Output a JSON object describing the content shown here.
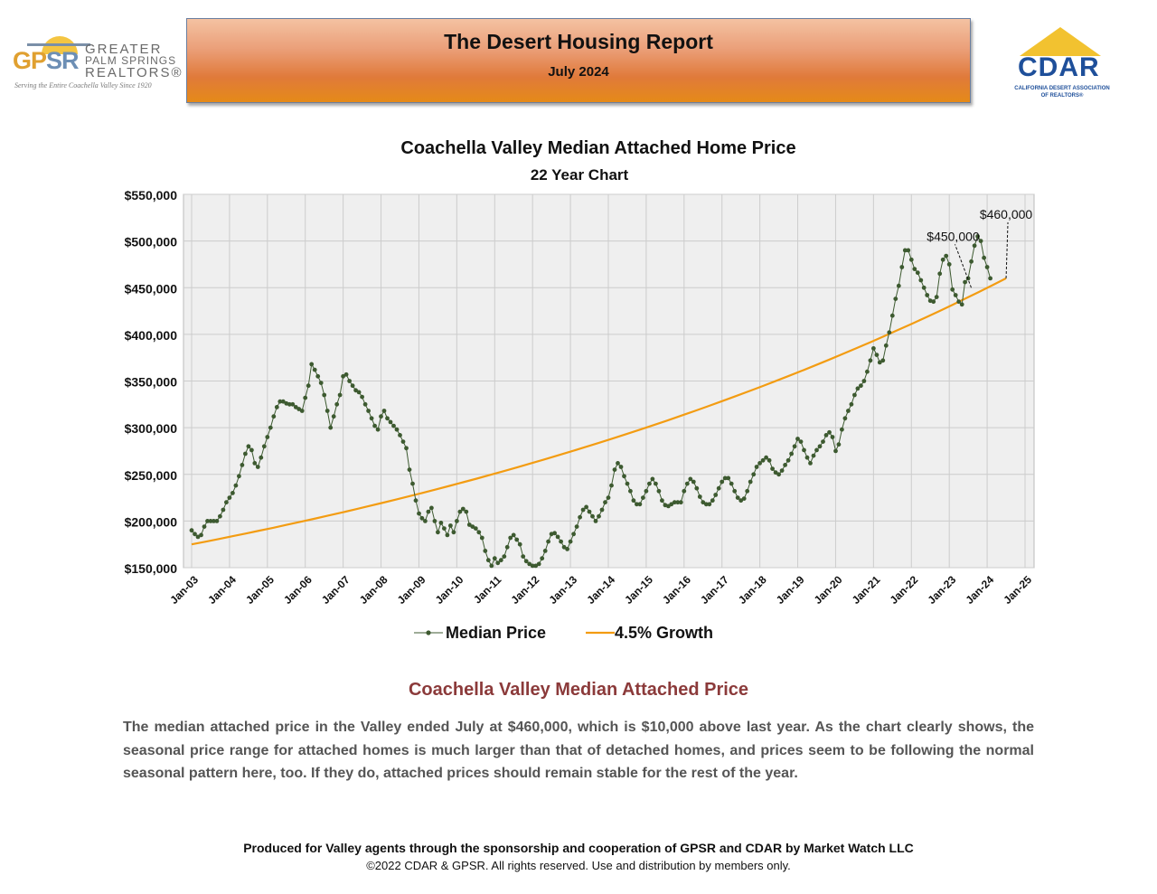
{
  "header": {
    "title": "The Desert Housing Report",
    "subtitle": "July 2024"
  },
  "logos": {
    "left": {
      "acronym_a": "GP",
      "acronym_b": "SR",
      "line1": "GREATER",
      "line2": "PALM SPRINGS",
      "line3": "REALTORS®",
      "tagline": "Serving the Entire Coachella Valley Since 1920"
    },
    "right": {
      "name": "CDAR",
      "subline1": "CALIFORNIA DESERT ASSOCIATION",
      "subline2": "OF REALTORS®"
    }
  },
  "chart_data": {
    "type": "line",
    "title": "Coachella Valley Median Attached Home Price",
    "subtitle": "22 Year Chart",
    "ylim": [
      150000,
      550000
    ],
    "yticks": [
      150000,
      200000,
      250000,
      300000,
      350000,
      400000,
      450000,
      500000,
      550000
    ],
    "ytick_labels": [
      "$150,000",
      "$200,000",
      "$250,000",
      "$300,000",
      "$350,000",
      "$400,000",
      "$450,000",
      "$500,000",
      "$550,000"
    ],
    "xlim": [
      2003.0,
      2025.0
    ],
    "xticks": [
      2003,
      2004,
      2005,
      2006,
      2007,
      2008,
      2009,
      2010,
      2011,
      2012,
      2013,
      2014,
      2015,
      2016,
      2017,
      2018,
      2019,
      2020,
      2021,
      2022,
      2023,
      2024,
      2025
    ],
    "xtick_labels": [
      "Jan-03",
      "Jan-04",
      "Jan-05",
      "Jan-06",
      "Jan-07",
      "Jan-08",
      "Jan-09",
      "Jan-10",
      "Jan-11",
      "Jan-12",
      "Jan-13",
      "Jan-14",
      "Jan-15",
      "Jan-16",
      "Jan-17",
      "Jan-18",
      "Jan-19",
      "Jan-20",
      "Jan-21",
      "Jan-22",
      "Jan-23",
      "Jan-24",
      "Jan-25"
    ],
    "grid": true,
    "legend_position": "bottom",
    "colors": {
      "median": "#3d5a30",
      "growth": "#f39c12",
      "plot_bg": "#efefef",
      "grid": "#cccccc"
    },
    "series": [
      {
        "name": "Median Price",
        "start_year": 2003.0,
        "monthly_step": true,
        "values": [
          190000,
          186000,
          183000,
          185000,
          194000,
          200000,
          200000,
          200000,
          200000,
          205000,
          212000,
          220000,
          225000,
          230000,
          238000,
          248000,
          260000,
          272000,
          280000,
          276000,
          262000,
          258000,
          268000,
          280000,
          290000,
          300000,
          312000,
          322000,
          328000,
          328000,
          326000,
          325000,
          325000,
          322000,
          320000,
          318000,
          332000,
          345000,
          368000,
          362000,
          355000,
          348000,
          335000,
          318000,
          300000,
          312000,
          325000,
          335000,
          355000,
          357000,
          350000,
          345000,
          340000,
          338000,
          333000,
          325000,
          318000,
          310000,
          302000,
          298000,
          312000,
          318000,
          310000,
          306000,
          302000,
          298000,
          292000,
          285000,
          278000,
          255000,
          240000,
          222000,
          208000,
          203000,
          200000,
          210000,
          214000,
          200000,
          188000,
          198000,
          192000,
          185000,
          195000,
          188000,
          200000,
          210000,
          213000,
          210000,
          196000,
          194000,
          192000,
          188000,
          182000,
          168000,
          158000,
          152000,
          160000,
          155000,
          158000,
          162000,
          172000,
          182000,
          185000,
          180000,
          175000,
          162000,
          157000,
          154000,
          152000,
          152000,
          154000,
          160000,
          168000,
          178000,
          186000,
          187000,
          183000,
          178000,
          172000,
          170000,
          178000,
          186000,
          194000,
          204000,
          212000,
          215000,
          210000,
          205000,
          200000,
          205000,
          212000,
          220000,
          225000,
          238000,
          255000,
          262000,
          258000,
          248000,
          240000,
          232000,
          222000,
          218000,
          218000,
          225000,
          232000,
          240000,
          245000,
          240000,
          232000,
          222000,
          217000,
          216000,
          218000,
          220000,
          220000,
          220000,
          232000,
          240000,
          245000,
          242000,
          235000,
          226000,
          220000,
          218000,
          218000,
          222000,
          228000,
          235000,
          242000,
          246000,
          246000,
          240000,
          232000,
          225000,
          222000,
          224000,
          232000,
          242000,
          250000,
          258000,
          262000,
          265000,
          268000,
          265000,
          256000,
          252000,
          250000,
          254000,
          260000,
          265000,
          272000,
          280000,
          288000,
          285000,
          276000,
          268000,
          262000,
          270000,
          276000,
          280000,
          285000,
          292000,
          295000,
          290000,
          275000,
          282000,
          298000,
          310000,
          318000,
          325000,
          335000,
          342000,
          345000,
          350000,
          360000,
          372000,
          385000,
          378000,
          370000,
          372000,
          388000,
          402000,
          420000,
          438000,
          452000,
          472000,
          490000,
          490000,
          480000,
          470000,
          466000,
          458000,
          450000,
          442000,
          436000,
          435000,
          440000,
          465000,
          480000,
          484000,
          475000,
          448000,
          442000,
          435000,
          432000,
          456000,
          460000,
          478000,
          495000,
          505000,
          500000,
          482000,
          472000,
          460000
        ]
      },
      {
        "name": "4.5% Growth",
        "start_year": 2003.0,
        "start_value": 175000,
        "end_year": 2024.5,
        "end_value": 460000
      }
    ],
    "annotations": [
      {
        "text": "$450,000",
        "x_year": 2023.58,
        "y": 450000
      },
      {
        "text": "$460,000",
        "x_year": 2024.5,
        "y": 460000
      }
    ]
  },
  "description": {
    "title": "Coachella Valley Median Attached Price",
    "body": "The median attached price in the Valley ended July at $460,000, which is $10,000 above last year. As the chart clearly shows, the seasonal price range for attached homes is much larger than that of detached homes, and prices seem to be following the normal seasonal pattern here, too. If they do, attached prices should remain stable for the rest of the year."
  },
  "footer": {
    "line1": "Produced for Valley agents through the sponsorship and cooperation of GPSR and CDAR by Market Watch LLC",
    "line2": "©2022 CDAR & GPSR.  All rights reserved.  Use and distribution by members only."
  }
}
